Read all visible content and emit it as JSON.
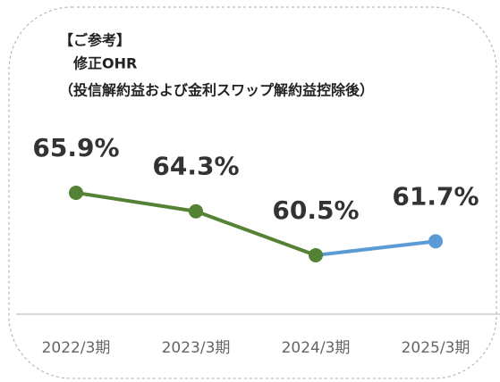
{
  "chart_data": {
    "type": "line",
    "note": "【ご参考】",
    "title": "修正OHR",
    "subtitle": "（投信解約益および金利スワップ解約益控除後）",
    "categories": [
      "2022/3期",
      "2023/3期",
      "2024/3期",
      "2025/3期"
    ],
    "values": [
      65.9,
      64.3,
      60.5,
      61.7
    ],
    "value_labels": [
      "65.9%",
      "64.3%",
      "60.5%",
      "61.7%"
    ],
    "colors": [
      "#548235",
      "#548235",
      "#548235",
      "#5b9bd5"
    ],
    "ylim": [
      55.4,
      72
    ]
  }
}
